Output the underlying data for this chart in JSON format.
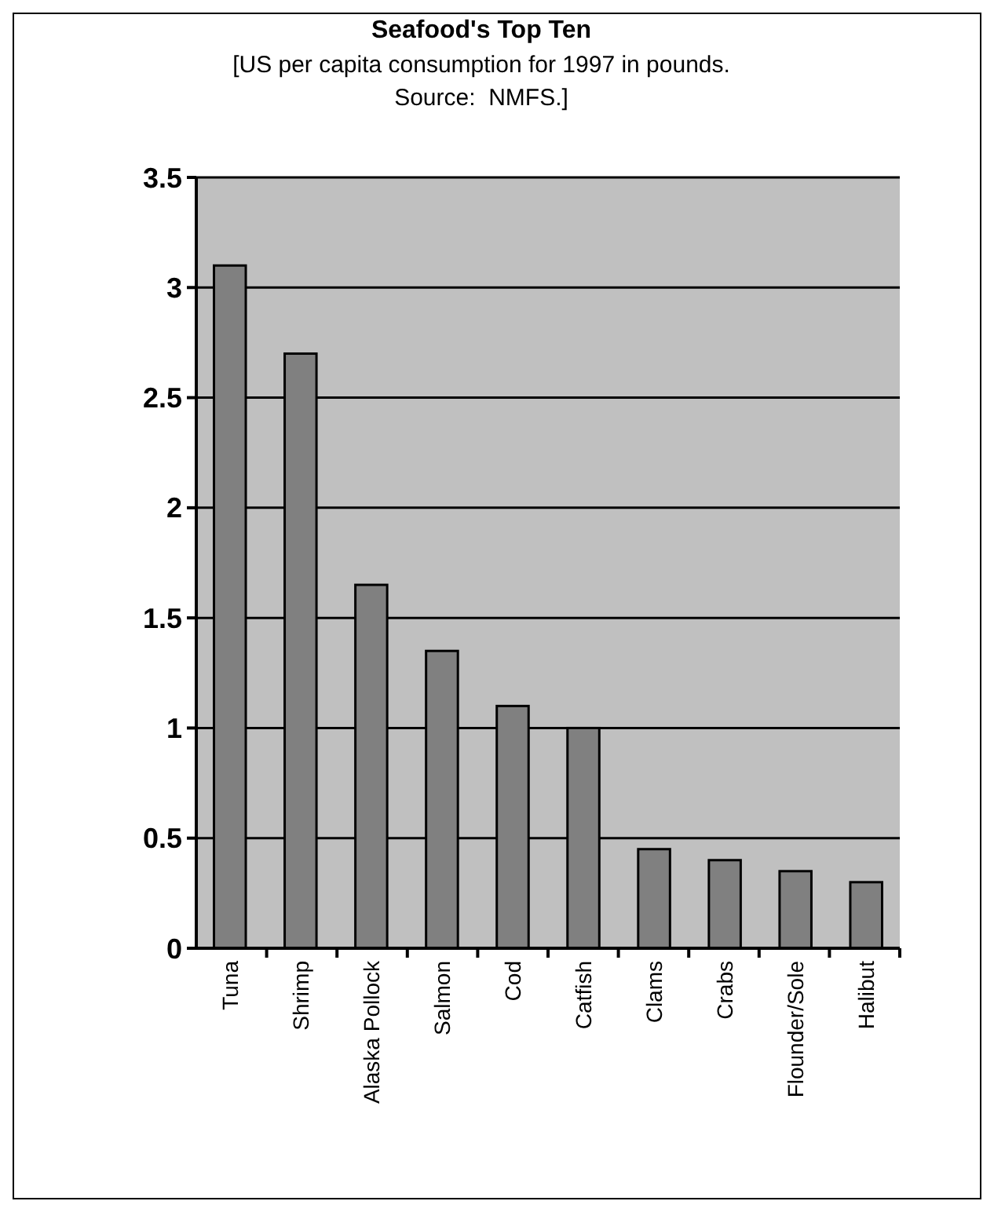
{
  "chart_data": {
    "type": "bar",
    "title": "Seafood's Top Ten",
    "subtitle": "[US per capita consumption for 1997 in pounds.\nSource:  NMFS.]",
    "categories": [
      "Tuna",
      "Shrimp",
      "Alaska Pollock",
      "Salmon",
      "Cod",
      "Catfish",
      "Clams",
      "Crabs",
      "Flounder/Sole",
      "Halibut"
    ],
    "values": [
      3.1,
      2.7,
      1.65,
      1.35,
      1.1,
      1.0,
      0.45,
      0.4,
      0.35,
      0.3
    ],
    "color": "#808080",
    "ylim": [
      0,
      3.5
    ],
    "yticks": [
      0,
      0.5,
      1,
      1.5,
      2,
      2.5,
      3,
      3.5
    ],
    "grid": "y"
  }
}
